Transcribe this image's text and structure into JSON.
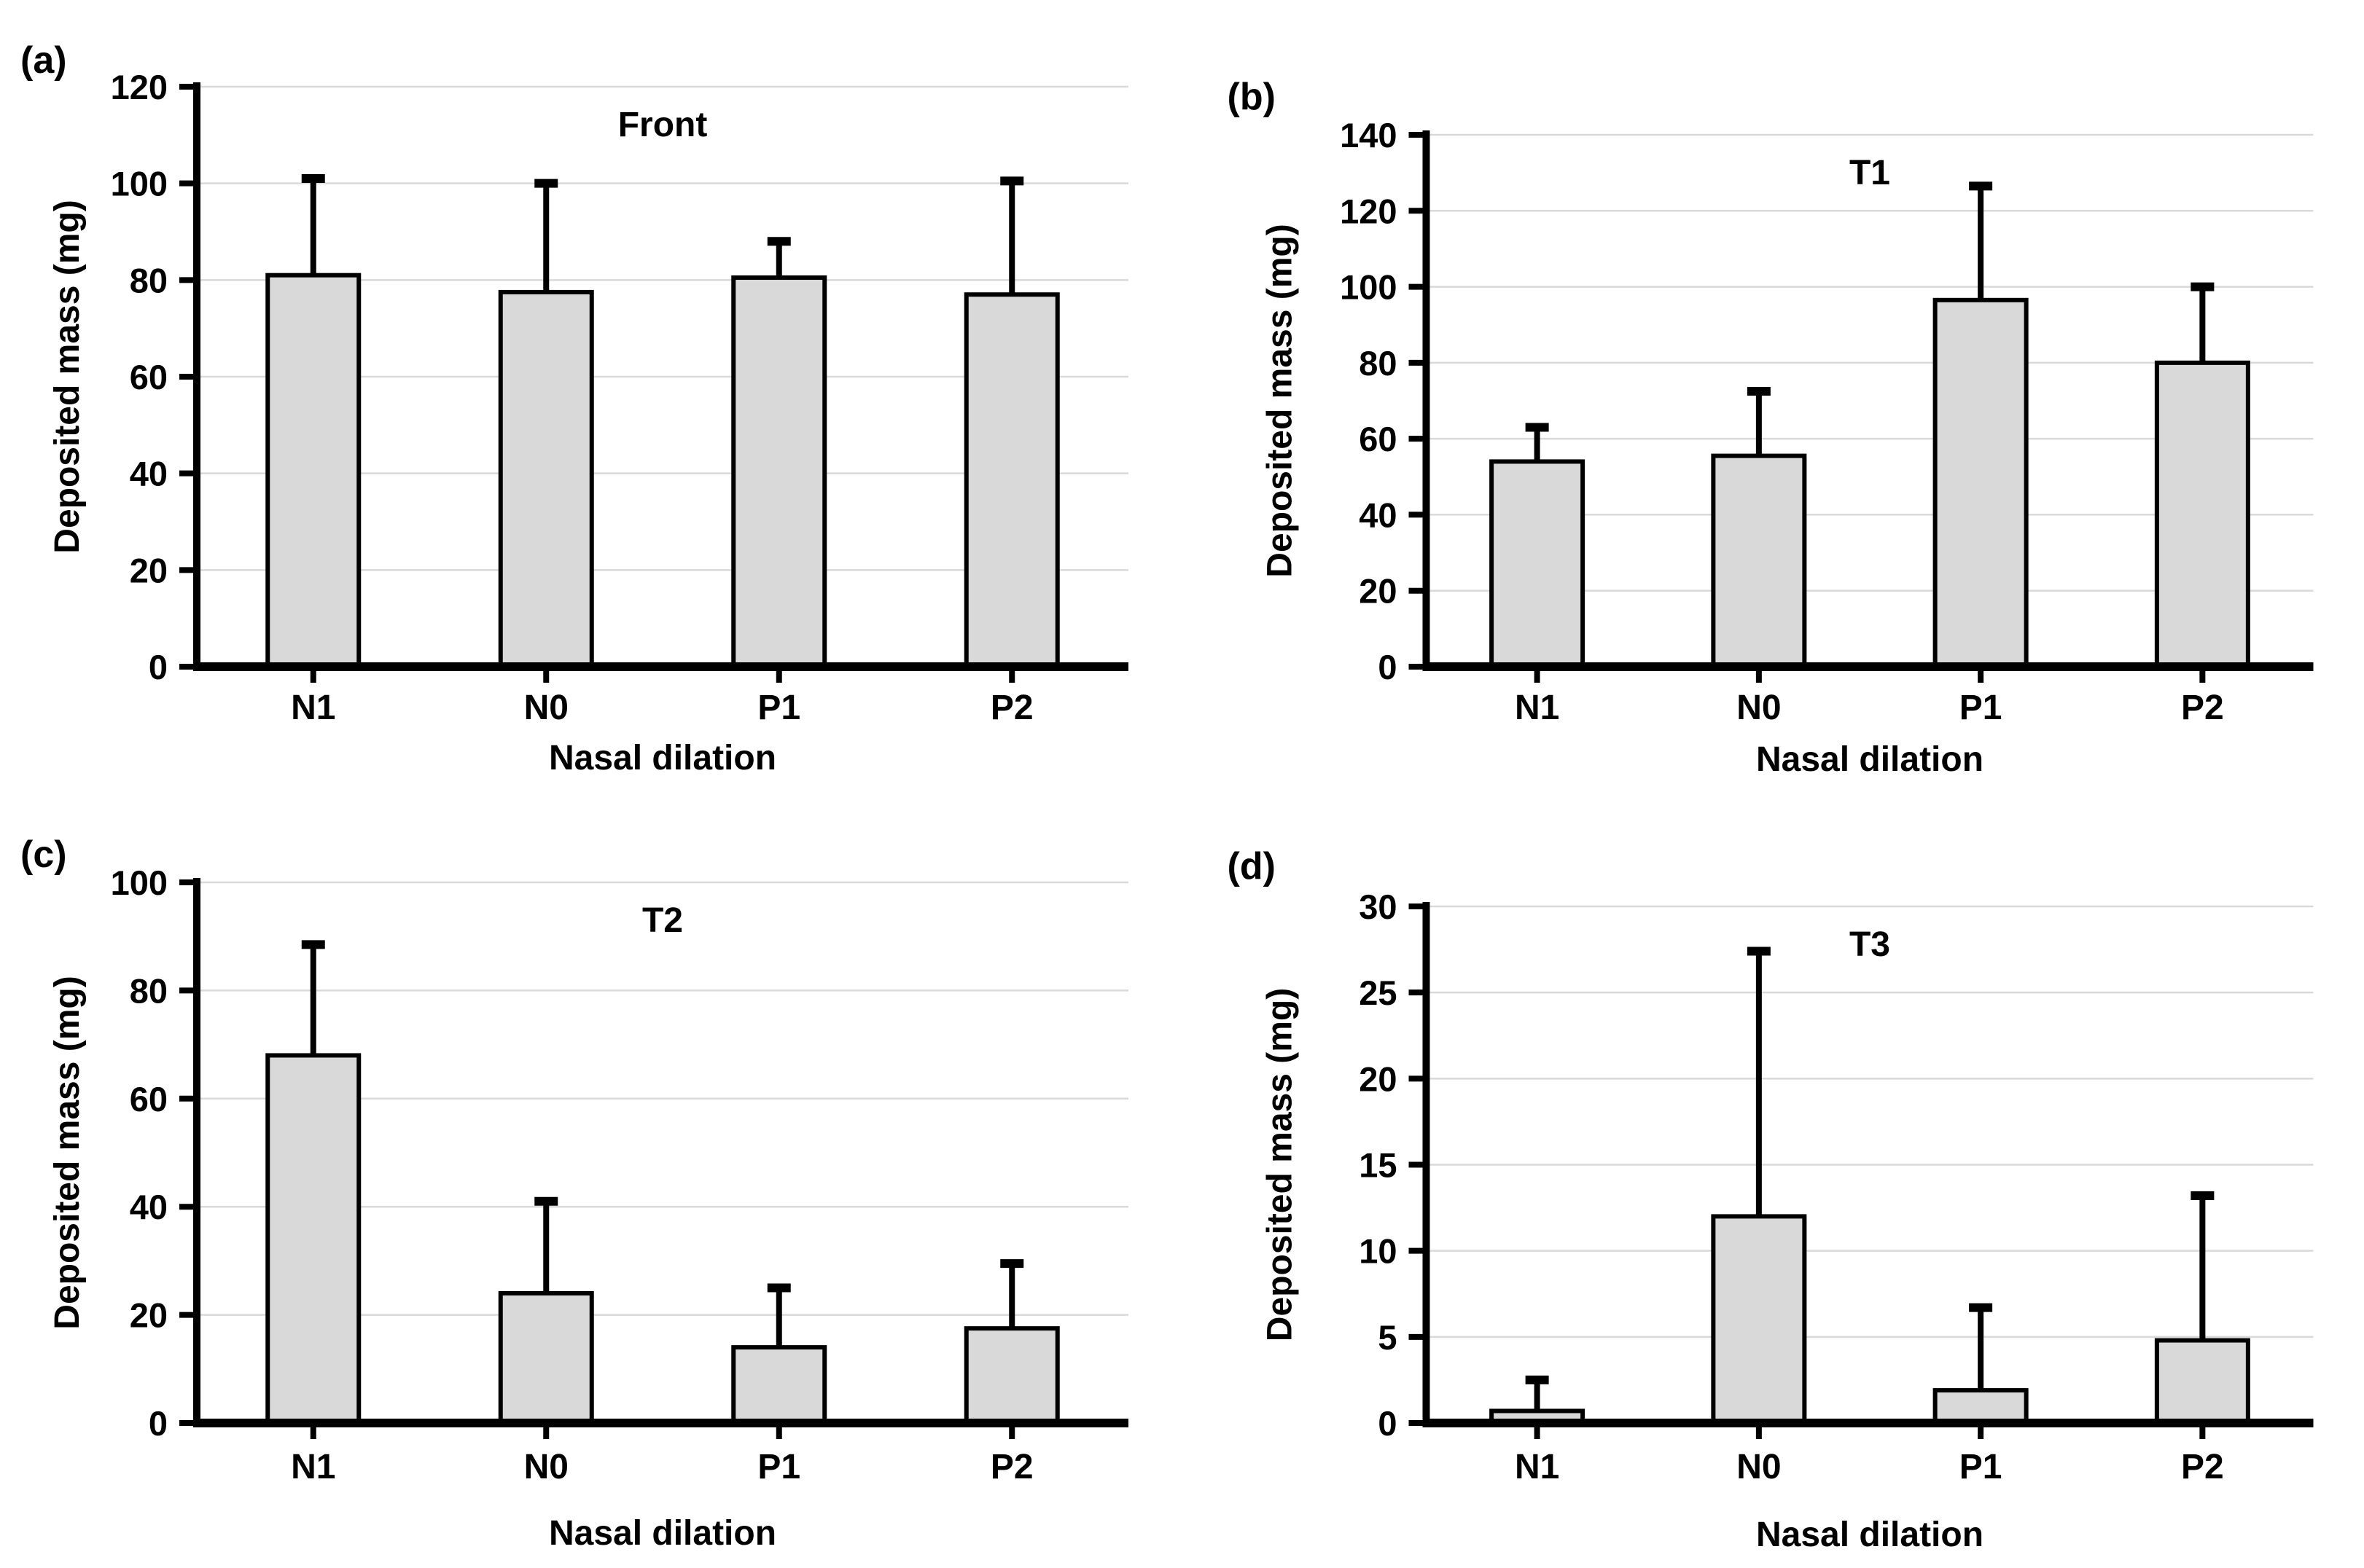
{
  "figure": {
    "background": "#ffffff",
    "bar_fill": "#d9d9d9",
    "bar_border": "#000000",
    "grid_color": "#d9d9d9",
    "axis_color": "#000000",
    "text_color": "#000000"
  },
  "chart_data": [
    {
      "type": "bar",
      "panel_label": "(a)",
      "title": "Front",
      "xlabel": "Nasal dilation",
      "ylabel": "Deposited mass (mg)",
      "categories": [
        "N1",
        "N0",
        "P1",
        "P2"
      ],
      "values": [
        81,
        77.5,
        80.5,
        77
      ],
      "errors_up": [
        20,
        22.5,
        7.5,
        23.5
      ],
      "ylim": [
        0,
        120
      ],
      "ytick_step": 20,
      "yticks": [
        0,
        20,
        40,
        60,
        80,
        100,
        120
      ],
      "grid": true,
      "legend": "none"
    },
    {
      "type": "bar",
      "panel_label": "(b)",
      "title": "T1",
      "xlabel": "Nasal dilation",
      "ylabel": "Deposited mass (mg)",
      "categories": [
        "N1",
        "N0",
        "P1",
        "P2"
      ],
      "values": [
        54,
        55.5,
        96.5,
        80
      ],
      "errors_up": [
        9,
        17,
        30,
        20
      ],
      "ylim": [
        0,
        140
      ],
      "ytick_step": 20,
      "yticks": [
        0,
        20,
        40,
        60,
        80,
        100,
        120,
        140
      ],
      "grid": true,
      "legend": "none"
    },
    {
      "type": "bar",
      "panel_label": "(c)",
      "title": "T2",
      "xlabel": "Nasal dilation",
      "ylabel": "Deposited mass (mg)",
      "categories": [
        "N1",
        "N0",
        "P1",
        "P2"
      ],
      "values": [
        68,
        24,
        14,
        17.5
      ],
      "errors_up": [
        20.5,
        17,
        11,
        12
      ],
      "ylim": [
        0,
        100
      ],
      "ytick_step": 20,
      "yticks": [
        0,
        20,
        40,
        60,
        80,
        100
      ],
      "grid": true,
      "legend": "none"
    },
    {
      "type": "bar",
      "panel_label": "(d)",
      "title": "T3",
      "xlabel": "Nasal dilation",
      "ylabel": "Deposited mass (mg)",
      "categories": [
        "N1",
        "N0",
        "P1",
        "P2"
      ],
      "values": [
        0.7,
        12,
        1.9,
        4.8
      ],
      "errors_up": [
        1.8,
        15.4,
        4.8,
        8.4
      ],
      "ylim": [
        0,
        30
      ],
      "ytick_step": 5,
      "yticks": [
        0,
        5,
        10,
        15,
        20,
        25,
        30
      ],
      "grid": true,
      "legend": "none"
    }
  ]
}
